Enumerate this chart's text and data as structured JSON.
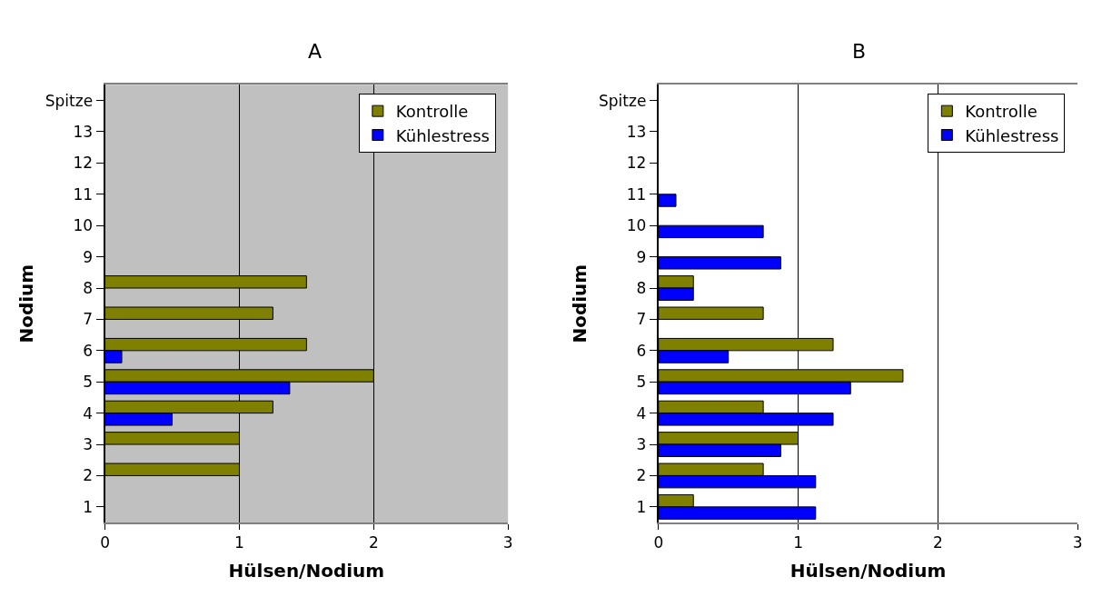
{
  "chart_data": [
    {
      "type": "bar",
      "title": "A",
      "xlabel": "Hülsen/Nodium",
      "ylabel": "Nodium",
      "orientation": "horizontal",
      "categories": [
        "Spitze",
        "13",
        "12",
        "11",
        "10",
        "9",
        "8",
        "7",
        "6",
        "5",
        "4",
        "3",
        "2",
        "1"
      ],
      "series": [
        {
          "name": "Kontrolle",
          "color": "#808000",
          "values": [
            null,
            null,
            null,
            null,
            null,
            null,
            1.5,
            1.25,
            1.5,
            2,
            1.25,
            1,
            1,
            null
          ]
        },
        {
          "name": "Kühlestress",
          "color": "#0000ff",
          "values": [
            null,
            null,
            null,
            null,
            null,
            null,
            null,
            null,
            0.125,
            1.375,
            0.5,
            null,
            null,
            null
          ]
        }
      ],
      "xlim": [
        0,
        3
      ],
      "xticks": [
        0,
        1,
        2,
        3
      ],
      "grid": "x",
      "legend": "top right"
    },
    {
      "type": "bar",
      "title": "B",
      "xlabel": "Hülsen/Nodium",
      "ylabel": "Nodium",
      "orientation": "horizontal",
      "categories": [
        "Spitze",
        "13",
        "12",
        "11",
        "10",
        "9",
        "8",
        "7",
        "6",
        "5",
        "4",
        "3",
        "2",
        "1"
      ],
      "series": [
        {
          "name": "Kontrolle",
          "color": "#808000",
          "values": [
            null,
            null,
            null,
            null,
            null,
            null,
            0.25,
            0.75,
            1.25,
            1.75,
            0.75,
            1,
            0.75,
            0.25
          ]
        },
        {
          "name": "Kühlestress",
          "color": "#0000ff",
          "values": [
            null,
            null,
            null,
            0.125,
            0.75,
            0.875,
            0.25,
            null,
            0.5,
            1.375,
            1.25,
            0.875,
            1.125,
            1.125
          ]
        }
      ],
      "xlim": [
        0,
        3
      ],
      "xticks": [
        0,
        1,
        2,
        3
      ],
      "grid": "x",
      "legend": "top right"
    }
  ]
}
